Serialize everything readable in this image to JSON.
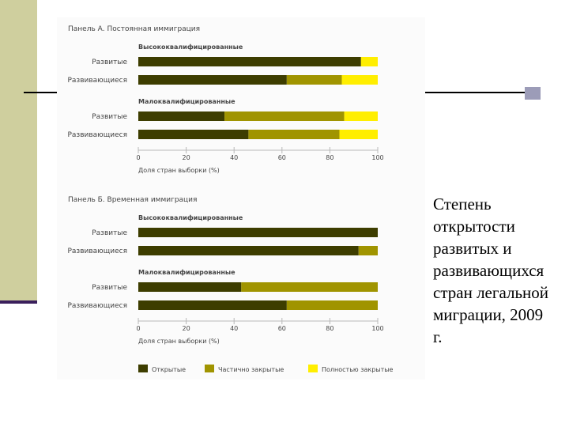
{
  "caption": "Степень открытости развитых и развивающихся стран легальной миграции, 2009 г.",
  "colors": {
    "open": "#3d3d00",
    "partial": "#a09400",
    "closed": "#ffee00",
    "grid": "#b8b8b8",
    "text": "#444444"
  },
  "chart_data": {
    "type": "bar",
    "stacked": true,
    "orientation": "horizontal",
    "xlabel": "Доля стран выборки (%)",
    "xlim": [
      0,
      100
    ],
    "xticks": [
      "0",
      "20",
      "40",
      "60",
      "80",
      "100"
    ],
    "legend": [
      {
        "name": "Открытые",
        "key": "open"
      },
      {
        "name": "Частично закрытые",
        "key": "partial"
      },
      {
        "name": "Полностью закрытые",
        "key": "closed"
      }
    ],
    "legend_position": "bottom",
    "panels": [
      {
        "title": "Панель А. Постоянная иммиграция",
        "groups": [
          {
            "title": "Высококвалифицированные",
            "rows": [
              {
                "label": "Развитые",
                "open": 93,
                "partial": 0,
                "closed": 7
              },
              {
                "label": "Развивающиеся",
                "open": 62,
                "partial": 23,
                "closed": 15
              }
            ]
          },
          {
            "title": "Малоквалифицированные",
            "rows": [
              {
                "label": "Развитые",
                "open": 36,
                "partial": 50,
                "closed": 14
              },
              {
                "label": "Развивающиеся",
                "open": 46,
                "partial": 38,
                "closed": 16
              }
            ]
          }
        ]
      },
      {
        "title": "Панель Б. Временная иммиграция",
        "groups": [
          {
            "title": "Высококвалифицированные",
            "rows": [
              {
                "label": "Развитые",
                "open": 100,
                "partial": 0,
                "closed": 0
              },
              {
                "label": "Развивающиеся",
                "open": 92,
                "partial": 8,
                "closed": 0
              }
            ]
          },
          {
            "title": "Малоквалифицированные",
            "rows": [
              {
                "label": "Развитые",
                "open": 43,
                "partial": 57,
                "closed": 0
              },
              {
                "label": "Развивающиеся",
                "open": 62,
                "partial": 38,
                "closed": 0
              }
            ]
          }
        ]
      }
    ]
  }
}
